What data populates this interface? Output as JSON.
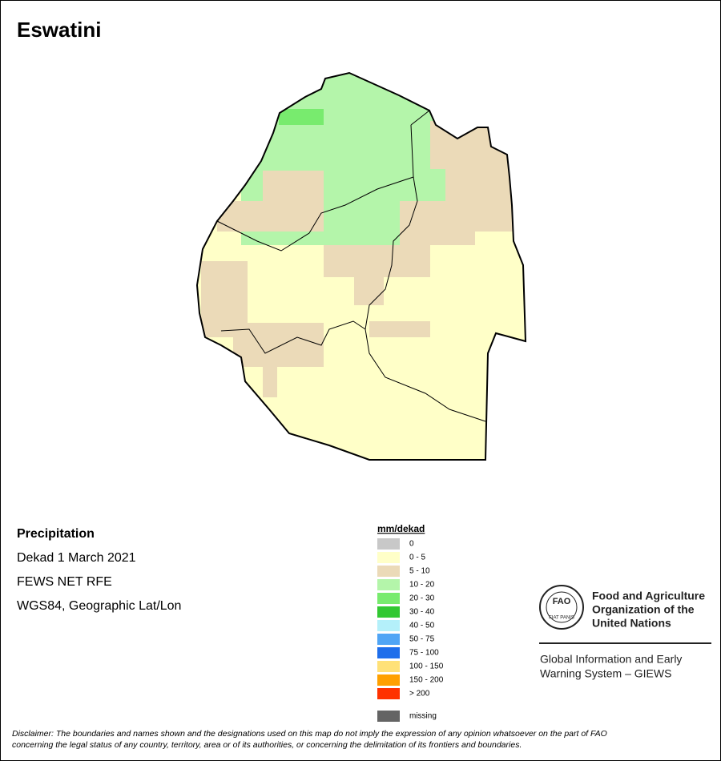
{
  "title": "Eswatini",
  "info": {
    "heading": "Precipitation",
    "lines": [
      "Dekad 1 March 2021",
      "FEWS NET RFE",
      "WGS84, Geographic Lat/Lon"
    ]
  },
  "legend": {
    "title": "mm/dekad",
    "items": [
      {
        "label": "0",
        "color": "#c8c8c8"
      },
      {
        "label": "0 - 5",
        "color": "#ffffc8"
      },
      {
        "label": "5 - 10",
        "color": "#ebdab8"
      },
      {
        "label": "10 - 20",
        "color": "#b4f5aa"
      },
      {
        "label": "20 - 30",
        "color": "#78eb6e"
      },
      {
        "label": "30 - 40",
        "color": "#32c832"
      },
      {
        "label": "40 - 50",
        "color": "#b4f0fa"
      },
      {
        "label": "50 - 75",
        "color": "#50a5f5"
      },
      {
        "label": "75 - 100",
        "color": "#1e6eeb"
      },
      {
        "label": "100 - 150",
        "color": "#ffe178"
      },
      {
        "label": "150 - 200",
        "color": "#ffa000"
      },
      {
        "label": "> 200",
        "color": "#ff3200"
      }
    ],
    "missing": {
      "label": "missing",
      "color": "#646464"
    }
  },
  "logo": {
    "emblem": "FAO",
    "motto": "FIAT PANIS",
    "organization": [
      "Food and Agriculture",
      "Organization of the",
      "United Nations"
    ],
    "system": [
      "Global Information and Early",
      "Warning System – GIEWS"
    ]
  },
  "disclaimer": [
    "Disclaimer: The boundaries and names shown and the designations used on this map do not imply the expression of any opinion whatsoever on the part of FAO",
    "concerning the legal status of any country, territory, area or of its authorities, or concerning the delimitation of its frontiers and boundaries."
  ]
}
